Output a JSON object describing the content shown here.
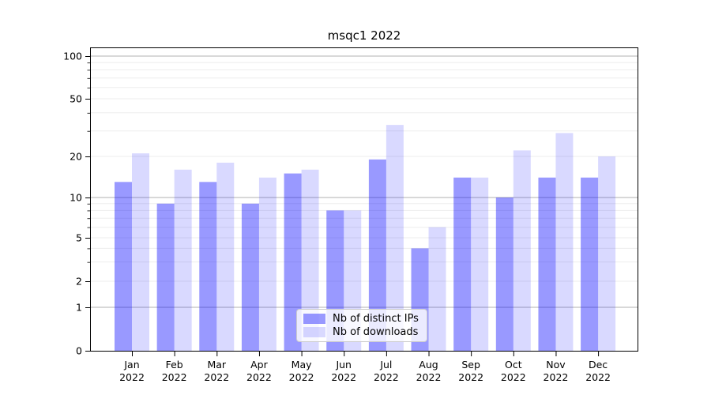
{
  "chart_data": {
    "type": "bar",
    "title": "msqc1 2022",
    "months": [
      "Jan",
      "Feb",
      "Mar",
      "Apr",
      "May",
      "Jun",
      "Jul",
      "Aug",
      "Sep",
      "Oct",
      "Nov",
      "Dec"
    ],
    "year_label": "2022",
    "series": [
      {
        "name": "Nb of distinct IPs",
        "color": "rgba(0,0,255,0.4)",
        "values": [
          13,
          9,
          13,
          9,
          15,
          8,
          19,
          4,
          14,
          10,
          14,
          14
        ]
      },
      {
        "name": "Nb of downloads",
        "color": "rgba(0,0,255,0.15)",
        "values": [
          21,
          16,
          18,
          14,
          16,
          8,
          33,
          6,
          14,
          22,
          29,
          20
        ]
      }
    ],
    "yticks": [
      0,
      1,
      2,
      5,
      10,
      20,
      50,
      100
    ],
    "ylim": [
      0,
      110
    ],
    "yscale": "symlog-like (linear 0-1, compressed log above)",
    "grid": true,
    "major_grid_values": [
      1,
      10,
      100
    ],
    "minor_grid_values": [
      2,
      3,
      4,
      5,
      6,
      7,
      8,
      9,
      20,
      30,
      40,
      50,
      60,
      70,
      80,
      90
    ],
    "legend_position": "lower center",
    "colors": {
      "distinct_ips": "rgba(0,0,255,0.4)",
      "downloads": "rgba(0,0,255,0.15)",
      "major_grid": "#b2b2b2",
      "minor_grid": "#ededed",
      "spine": "#000000"
    }
  }
}
